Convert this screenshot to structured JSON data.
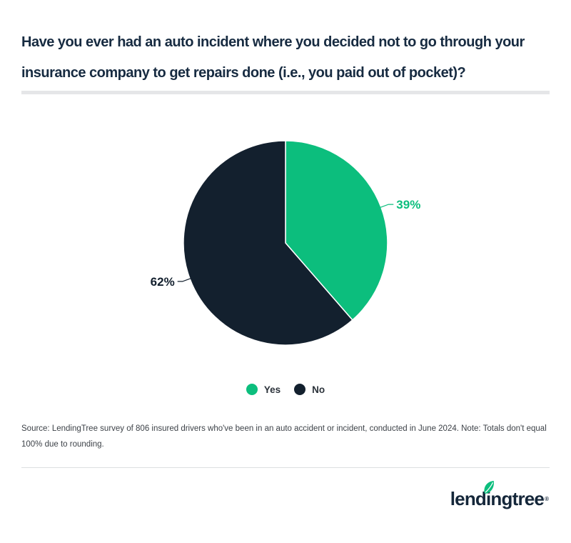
{
  "header": {
    "title_line1": "Have you ever had an auto incident where you decided not to go through your",
    "title_line2": "insurance company to get repairs done (i.e., you paid out of pocket)?"
  },
  "chart_data": {
    "type": "pie",
    "title": "Have you ever had an auto incident where you decided not to go through your insurance company to get repairs done (i.e., you paid out of pocket)?",
    "slices": [
      {
        "label": "Yes",
        "value": 39,
        "percent_label": "39%",
        "color": "#0cbe7d"
      },
      {
        "label": "No",
        "value": 62,
        "percent_label": "62%",
        "color": "#13202e"
      }
    ],
    "start_angle_deg": 0,
    "direction": "clockwise",
    "legend_position": "bottom",
    "note": "Totals don't equal 100% due to rounding"
  },
  "legend": {
    "items": [
      {
        "label": "Yes",
        "color": "#0cbe7d"
      },
      {
        "label": "No",
        "color": "#13202e"
      }
    ]
  },
  "source_note": "Source: LendingTree survey of 806 insured drivers who've been in an auto accident or incident, conducted in June 2024. Note: Totals don't equal 100% due to rounding.",
  "footer": {
    "logo_text": "lendingtree",
    "registered_mark": "®",
    "brand_green": "#0cbe7d",
    "brand_navy": "#15273a"
  }
}
